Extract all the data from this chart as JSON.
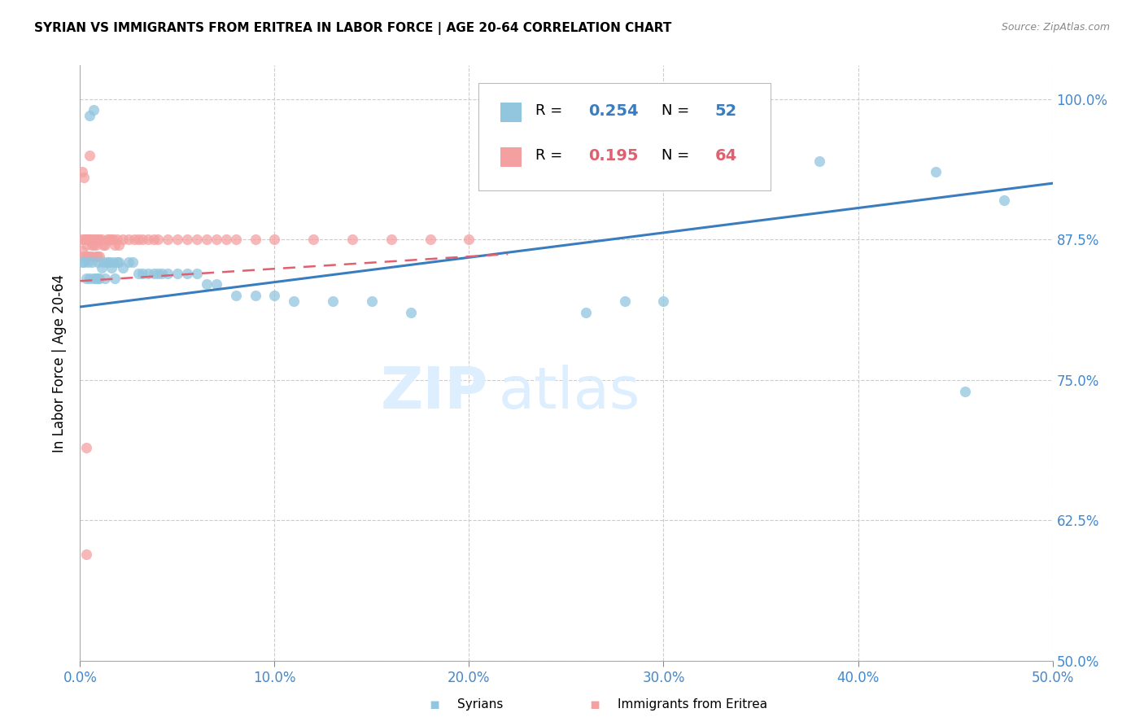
{
  "title": "SYRIAN VS IMMIGRANTS FROM ERITREA IN LABOR FORCE | AGE 20-64 CORRELATION CHART",
  "source": "Source: ZipAtlas.com",
  "ylabel": "In Labor Force | Age 20-64",
  "x_range": [
    0.0,
    0.5
  ],
  "y_range": [
    0.5,
    1.03
  ],
  "legend_label1": "Syrians",
  "legend_label2": "Immigrants from Eritrea",
  "R1": 0.254,
  "N1": 52,
  "R2": 0.195,
  "N2": 64,
  "color_blue": "#92c5de",
  "color_pink": "#f4a0a0",
  "trendline_blue": "#3a7dbf",
  "trendline_pink": "#e06070",
  "blue_line_x": [
    0.0,
    0.5
  ],
  "blue_line_y": [
    0.815,
    0.925
  ],
  "pink_line_x": [
    0.0,
    0.22
  ],
  "pink_line_y": [
    0.838,
    0.862
  ],
  "watermark_color": "#ddeeff",
  "grid_color": "#cccccc",
  "tick_color": "#4488cc",
  "yticks": [
    0.5,
    0.625,
    0.75,
    0.875,
    1.0
  ],
  "xticks": [
    0.0,
    0.1,
    0.2,
    0.3,
    0.4,
    0.5
  ],
  "syrians_x": [
    0.001,
    0.002,
    0.003,
    0.004,
    0.005,
    0.005,
    0.006,
    0.007,
    0.007,
    0.008,
    0.009,
    0.009,
    0.01,
    0.011,
    0.012,
    0.013,
    0.014,
    0.015,
    0.016,
    0.017,
    0.018,
    0.019,
    0.02,
    0.022,
    0.025,
    0.027,
    0.03,
    0.032,
    0.035,
    0.038,
    0.04,
    0.042,
    0.045,
    0.05,
    0.055,
    0.06,
    0.065,
    0.07,
    0.08,
    0.09,
    0.1,
    0.11,
    0.13,
    0.15,
    0.17,
    0.26,
    0.28,
    0.3,
    0.38,
    0.44,
    0.455,
    0.475
  ],
  "syrians_y": [
    0.855,
    0.855,
    0.84,
    0.855,
    0.84,
    0.985,
    0.855,
    0.84,
    0.99,
    0.84,
    0.855,
    0.84,
    0.84,
    0.85,
    0.855,
    0.84,
    0.855,
    0.855,
    0.85,
    0.855,
    0.84,
    0.855,
    0.855,
    0.85,
    0.855,
    0.855,
    0.845,
    0.845,
    0.845,
    0.845,
    0.845,
    0.845,
    0.845,
    0.845,
    0.845,
    0.845,
    0.835,
    0.835,
    0.825,
    0.825,
    0.825,
    0.82,
    0.82,
    0.82,
    0.81,
    0.81,
    0.82,
    0.82,
    0.945,
    0.935,
    0.74,
    0.91
  ],
  "eritrea_x": [
    0.001,
    0.001,
    0.002,
    0.002,
    0.003,
    0.003,
    0.003,
    0.004,
    0.004,
    0.005,
    0.005,
    0.005,
    0.006,
    0.006,
    0.006,
    0.007,
    0.007,
    0.008,
    0.008,
    0.008,
    0.009,
    0.009,
    0.01,
    0.01,
    0.011,
    0.012,
    0.013,
    0.014,
    0.015,
    0.016,
    0.017,
    0.018,
    0.019,
    0.02,
    0.022,
    0.025,
    0.028,
    0.03,
    0.032,
    0.035,
    0.038,
    0.04,
    0.045,
    0.05,
    0.055,
    0.06,
    0.065,
    0.07,
    0.075,
    0.08,
    0.09,
    0.1,
    0.12,
    0.14,
    0.16,
    0.18,
    0.2,
    0.001,
    0.002,
    0.003,
    0.004,
    0.005,
    0.003,
    0.003
  ],
  "eritrea_y": [
    0.875,
    0.865,
    0.875,
    0.86,
    0.875,
    0.87,
    0.86,
    0.875,
    0.86,
    0.875,
    0.86,
    0.875,
    0.87,
    0.875,
    0.86,
    0.87,
    0.875,
    0.87,
    0.875,
    0.86,
    0.875,
    0.86,
    0.875,
    0.86,
    0.875,
    0.87,
    0.87,
    0.875,
    0.875,
    0.875,
    0.875,
    0.87,
    0.875,
    0.87,
    0.875,
    0.875,
    0.875,
    0.875,
    0.875,
    0.875,
    0.875,
    0.875,
    0.875,
    0.875,
    0.875,
    0.875,
    0.875,
    0.875,
    0.875,
    0.875,
    0.875,
    0.875,
    0.875,
    0.875,
    0.875,
    0.875,
    0.875,
    0.935,
    0.93,
    0.86,
    0.875,
    0.95,
    0.69,
    0.595
  ]
}
